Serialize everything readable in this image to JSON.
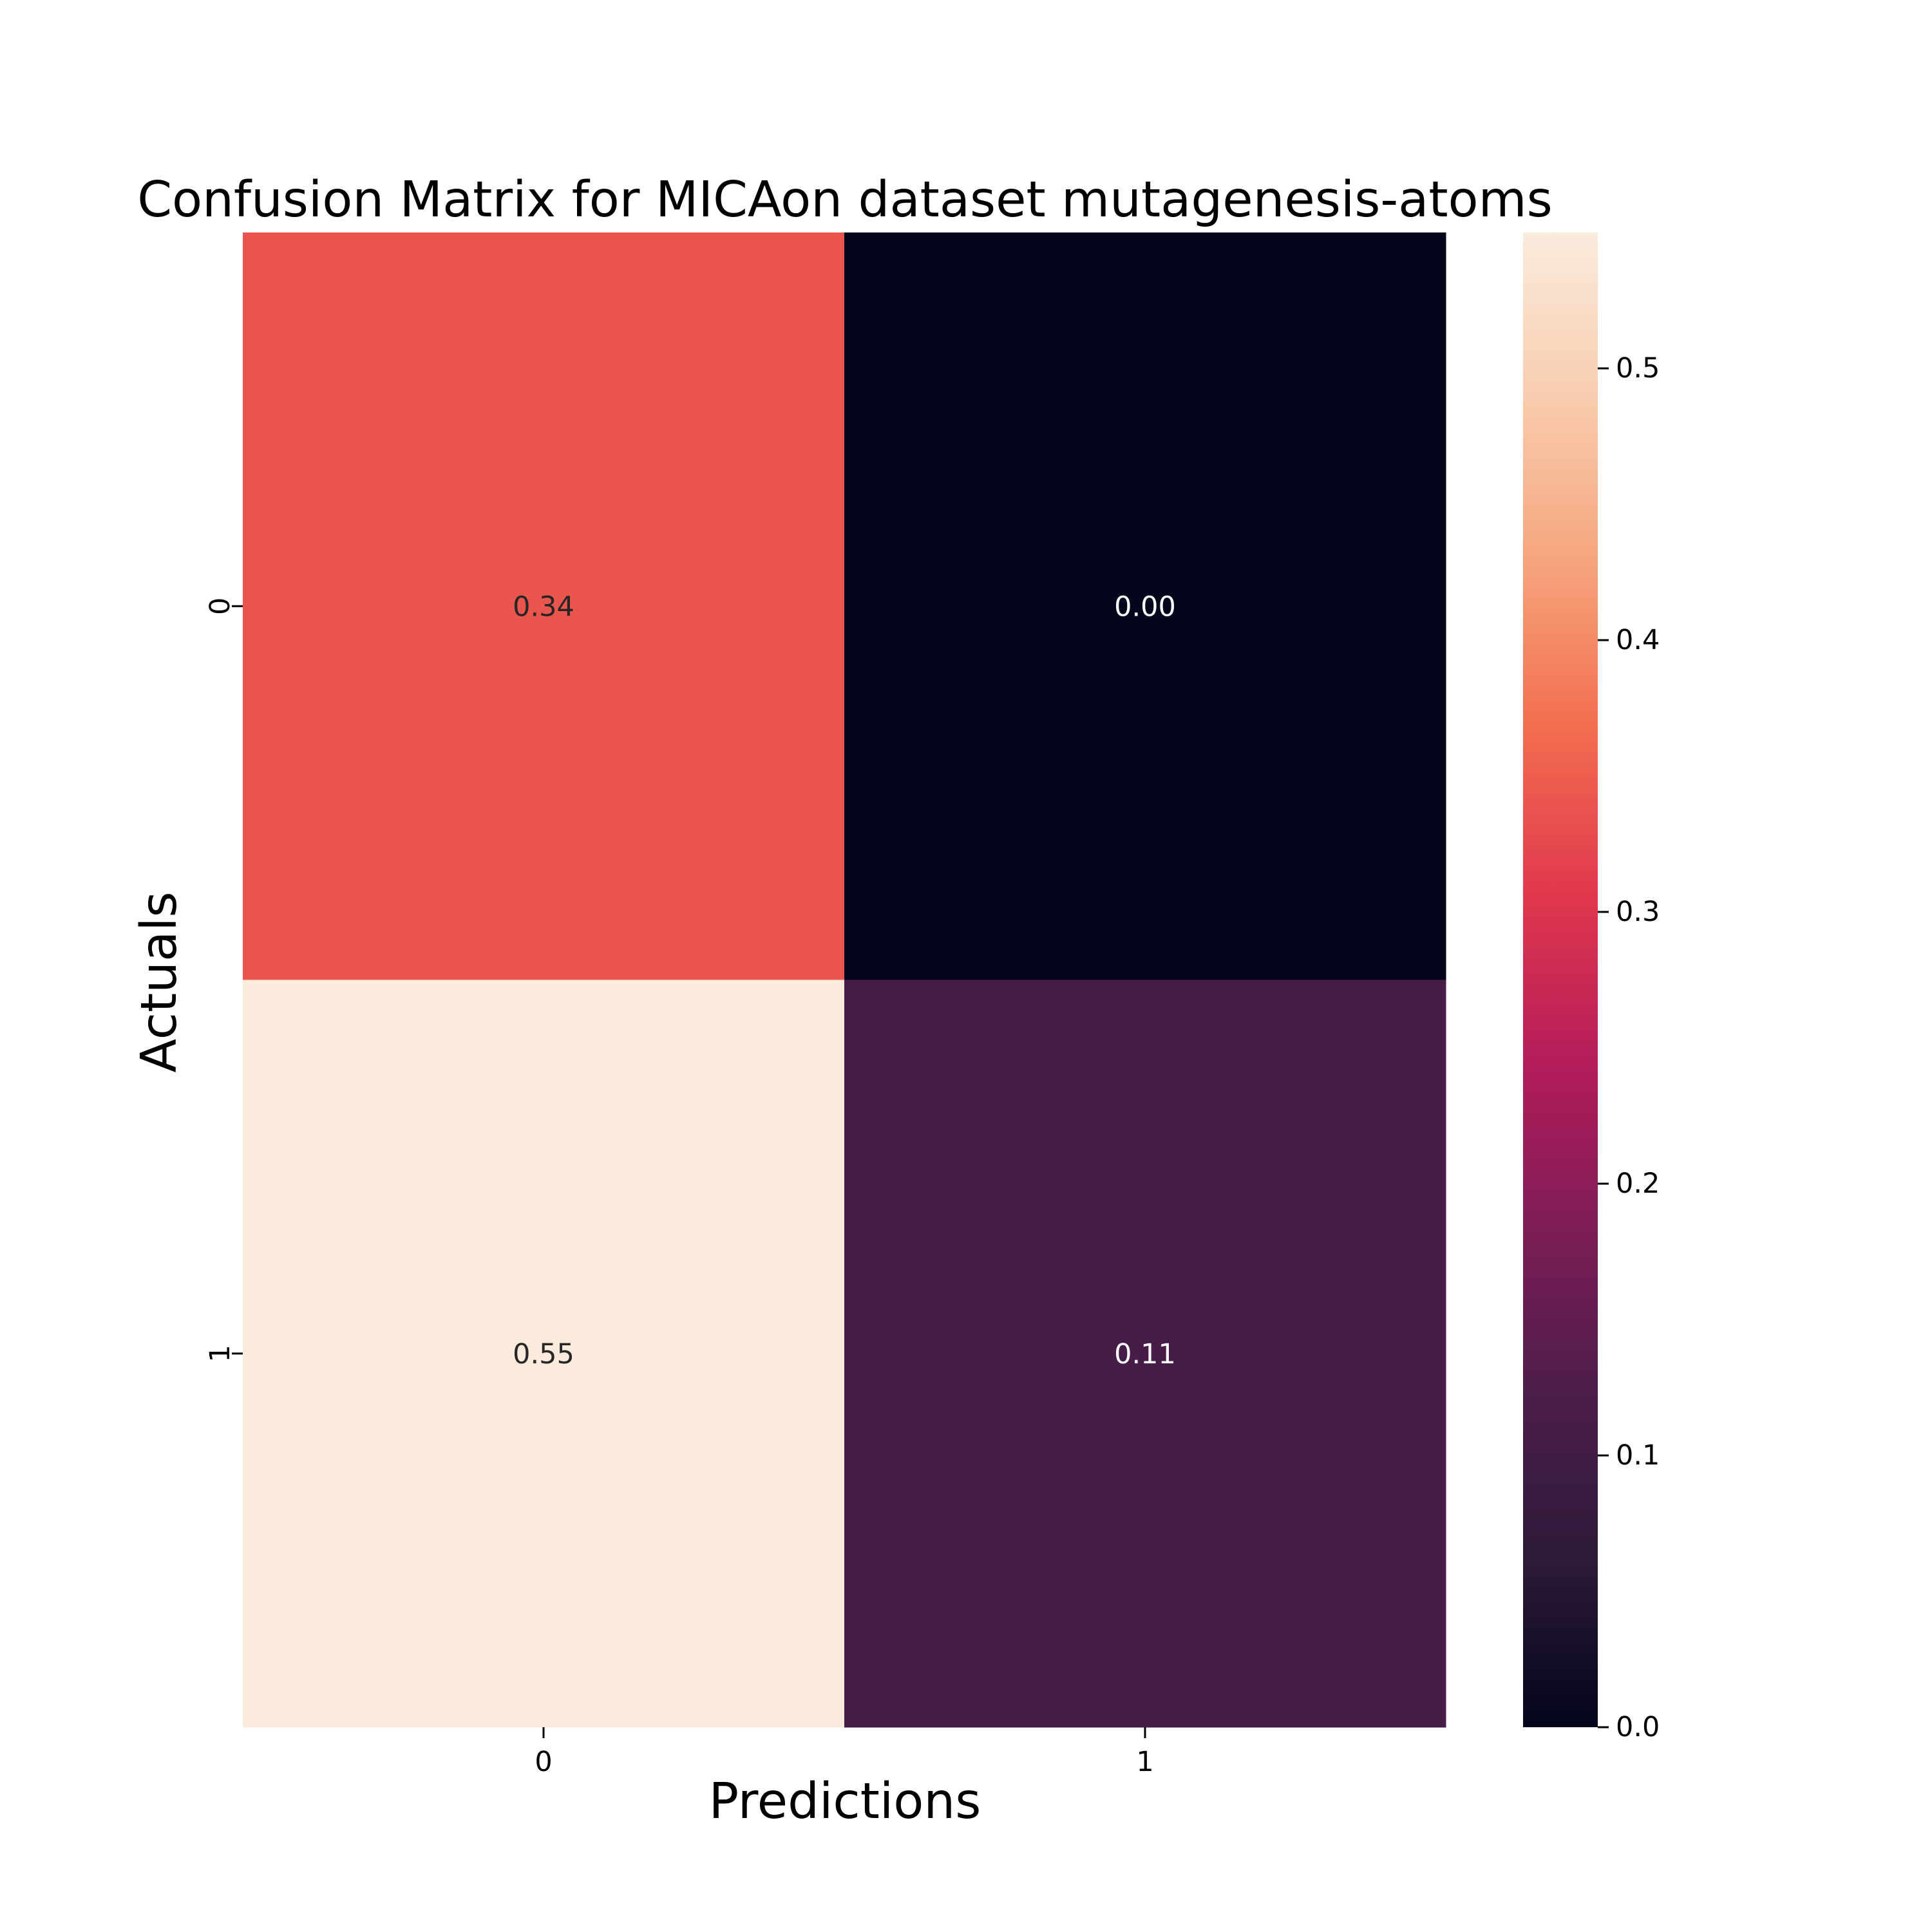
{
  "chart_data": {
    "type": "heatmap",
    "title": "Confusion Matrix for MICAon dataset mutagenesis-atoms",
    "xlabel": "Predictions",
    "ylabel": "Actuals",
    "x_categories": [
      "0",
      "1"
    ],
    "y_categories": [
      "0",
      "1"
    ],
    "values": [
      [
        0.34,
        0.0
      ],
      [
        0.55,
        0.11
      ]
    ],
    "cell_labels": [
      [
        "0.34",
        "0.00"
      ],
      [
        "0.55",
        "0.11"
      ]
    ],
    "colormap": "rocket",
    "colorbar": {
      "range": [
        0.0,
        0.55
      ],
      "ticks": [
        0.0,
        0.1,
        0.2,
        0.3,
        0.4,
        0.5
      ],
      "tick_labels": [
        "0.0",
        "0.1",
        "0.2",
        "0.3",
        "0.4",
        "0.5"
      ]
    },
    "grid": false,
    "colors": {
      "colormap_stops": [
        "#03051a",
        "#2d1a3a",
        "#4c1d4b",
        "#7d1d57",
        "#b41c5a",
        "#e0374d",
        "#f26c4f",
        "#f6a47c",
        "#f8ccae",
        "#faebdd"
      ],
      "low_text": "#ffffff",
      "high_text": "#262626"
    }
  }
}
